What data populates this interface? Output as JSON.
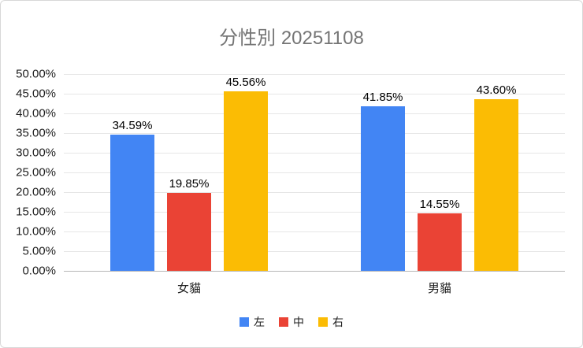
{
  "title": "分性別 20251108",
  "chart_data": {
    "type": "bar",
    "title": "分性別 20251108",
    "categories": [
      "女貓",
      "男貓"
    ],
    "series": [
      {
        "name": "左",
        "color": "#4285F4",
        "values": [
          34.59,
          41.85
        ]
      },
      {
        "name": "中",
        "color": "#EA4335",
        "values": [
          19.85,
          14.55
        ]
      },
      {
        "name": "右",
        "color": "#FBBC04",
        "values": [
          45.56,
          43.6
        ]
      }
    ],
    "data_labels": [
      [
        "34.59%",
        "41.85%"
      ],
      [
        "19.85%",
        "14.55%"
      ],
      [
        "45.56%",
        "43.60%"
      ]
    ],
    "y_tick_labels": [
      "0.00%",
      "5.00%",
      "10.00%",
      "15.00%",
      "20.00%",
      "25.00%",
      "30.00%",
      "35.00%",
      "40.00%",
      "45.00%",
      "50.00%"
    ],
    "ylim": [
      0,
      50
    ],
    "ytick_step": 5,
    "value_suffix": "%",
    "grid": true,
    "legend_position": "bottom",
    "legend": [
      "左",
      "中",
      "右"
    ]
  },
  "colors": {
    "title_text": "#757575",
    "axis_text": "#212121",
    "data_label_text": "#000000",
    "gridline": "#e6e6e6",
    "axis_line": "#b7b7b7",
    "background": "#ffffff",
    "border": "#d8d8d8"
  }
}
